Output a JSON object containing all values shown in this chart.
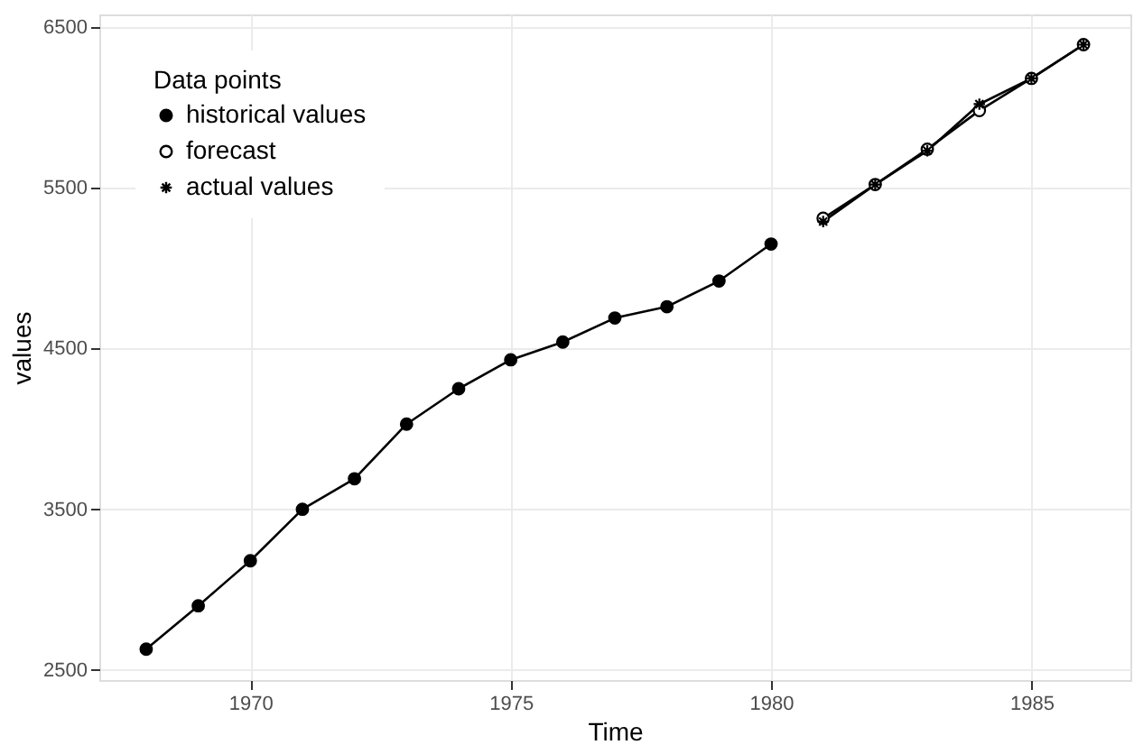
{
  "chart_data": {
    "type": "line",
    "xlabel": "Time",
    "ylabel": "values",
    "legend_title": "Data points",
    "xlim": [
      1967.1,
      1986.9
    ],
    "xticks": [
      1970,
      1975,
      1980,
      1985
    ],
    "ylim": [
      2438,
      6578
    ],
    "yticks": [
      2500,
      3500,
      4500,
      5500,
      6500
    ],
    "grid": true,
    "legend": "top left",
    "line_style": "solid",
    "series": [
      {
        "name": "historical values",
        "color": "#000000",
        "marker": "circle",
        "x": [
          1968,
          1969,
          1970,
          1971,
          1972,
          1973,
          1974,
          1975,
          1976,
          1977,
          1978,
          1979,
          1980
        ],
        "values": [
          2630,
          2900,
          3180,
          3500,
          3690,
          4030,
          4250,
          4430,
          4540,
          4690,
          4760,
          4920,
          5150
        ]
      },
      {
        "name": "forecast",
        "color": "#000000",
        "marker": "circle",
        "x": [
          1981,
          1982,
          1983,
          1984,
          1985,
          1986
        ],
        "values": [
          5310,
          5520,
          5740,
          5980,
          6180,
          6390
        ]
      },
      {
        "name": "actual values",
        "color": "#000000",
        "marker": "cross",
        "x": [
          1981,
          1982,
          1983,
          1984,
          1985,
          1986
        ],
        "values": [
          5290,
          5520,
          5730,
          6020,
          6180,
          6390
        ]
      }
    ]
  }
}
